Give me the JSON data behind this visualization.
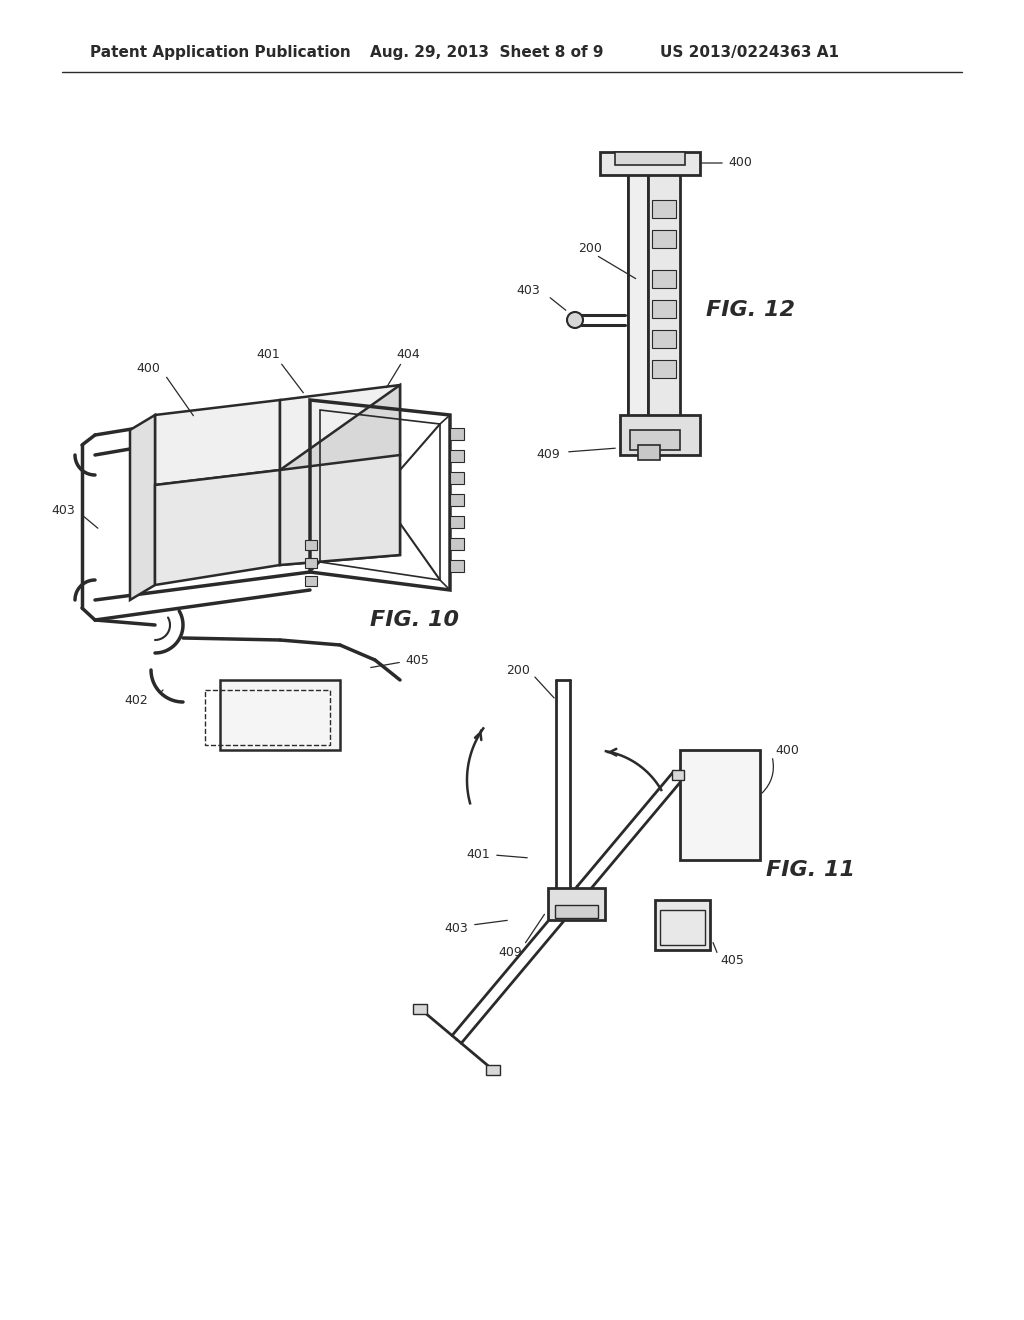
{
  "bg_color": "#ffffff",
  "lc": "#2a2a2a",
  "header1": "Patent Application Publication",
  "header2": "Aug. 29, 2013  Sheet 8 of 9",
  "header3": "US 2013/0224363 A1",
  "fig10_label": "FIG. 10",
  "fig11_label": "FIG. 11",
  "fig12_label": "FIG. 12"
}
